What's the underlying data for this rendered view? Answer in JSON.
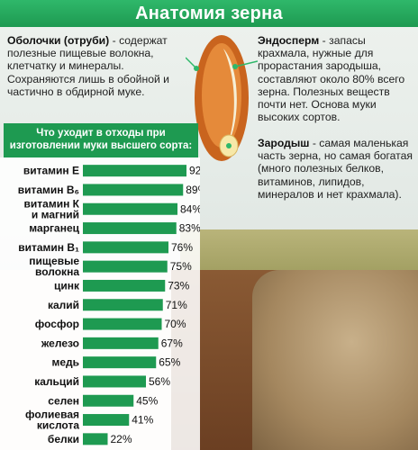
{
  "title": "Анатомия зерна",
  "shell": {
    "term": "Оболочки (отруби)",
    "text": " - содержат полезные пищевые волокна, клетчатку и минералы. Сохраняются лишь в обойной и частично в обдирной муке."
  },
  "endosperm": {
    "term": "Эндосперм",
    "text": " - запасы крахмала, нужные для прорастания зародыша, составляют около 80% всего зерна. Полезных веществ почти нет. Основа муки высоких сортов."
  },
  "germ": {
    "term": "Зародыш",
    "text": " - самая маленькая часть зерна, но самая богатая (много полезных белков, витаминов, липидов, минералов и нет крахмала)."
  },
  "colors": {
    "accent": "#1e9a51",
    "title_bar": "#2fb86a"
  },
  "chart_data": {
    "type": "bar",
    "orientation": "horizontal",
    "title": "Что уходит в отходы при изготовлении муки высшего сорта:",
    "categories": [
      [
        "витамин E"
      ],
      [
        "витамин B₆"
      ],
      [
        "витамин К",
        "и магний"
      ],
      [
        "марганец"
      ],
      [
        "витамин B₁"
      ],
      [
        "пищевые",
        "волокна"
      ],
      [
        "цинк"
      ],
      [
        "калий"
      ],
      [
        "фосфор"
      ],
      [
        "железо"
      ],
      [
        "медь"
      ],
      [
        "кальций"
      ],
      [
        "селен"
      ],
      [
        "фолиевая",
        "кислота"
      ],
      [
        "белки"
      ]
    ],
    "values": [
      92,
      89,
      84,
      83,
      76,
      75,
      73,
      71,
      70,
      67,
      65,
      56,
      45,
      41,
      22
    ],
    "value_suffix": "%",
    "xlim": [
      0,
      100
    ],
    "grid": false
  }
}
